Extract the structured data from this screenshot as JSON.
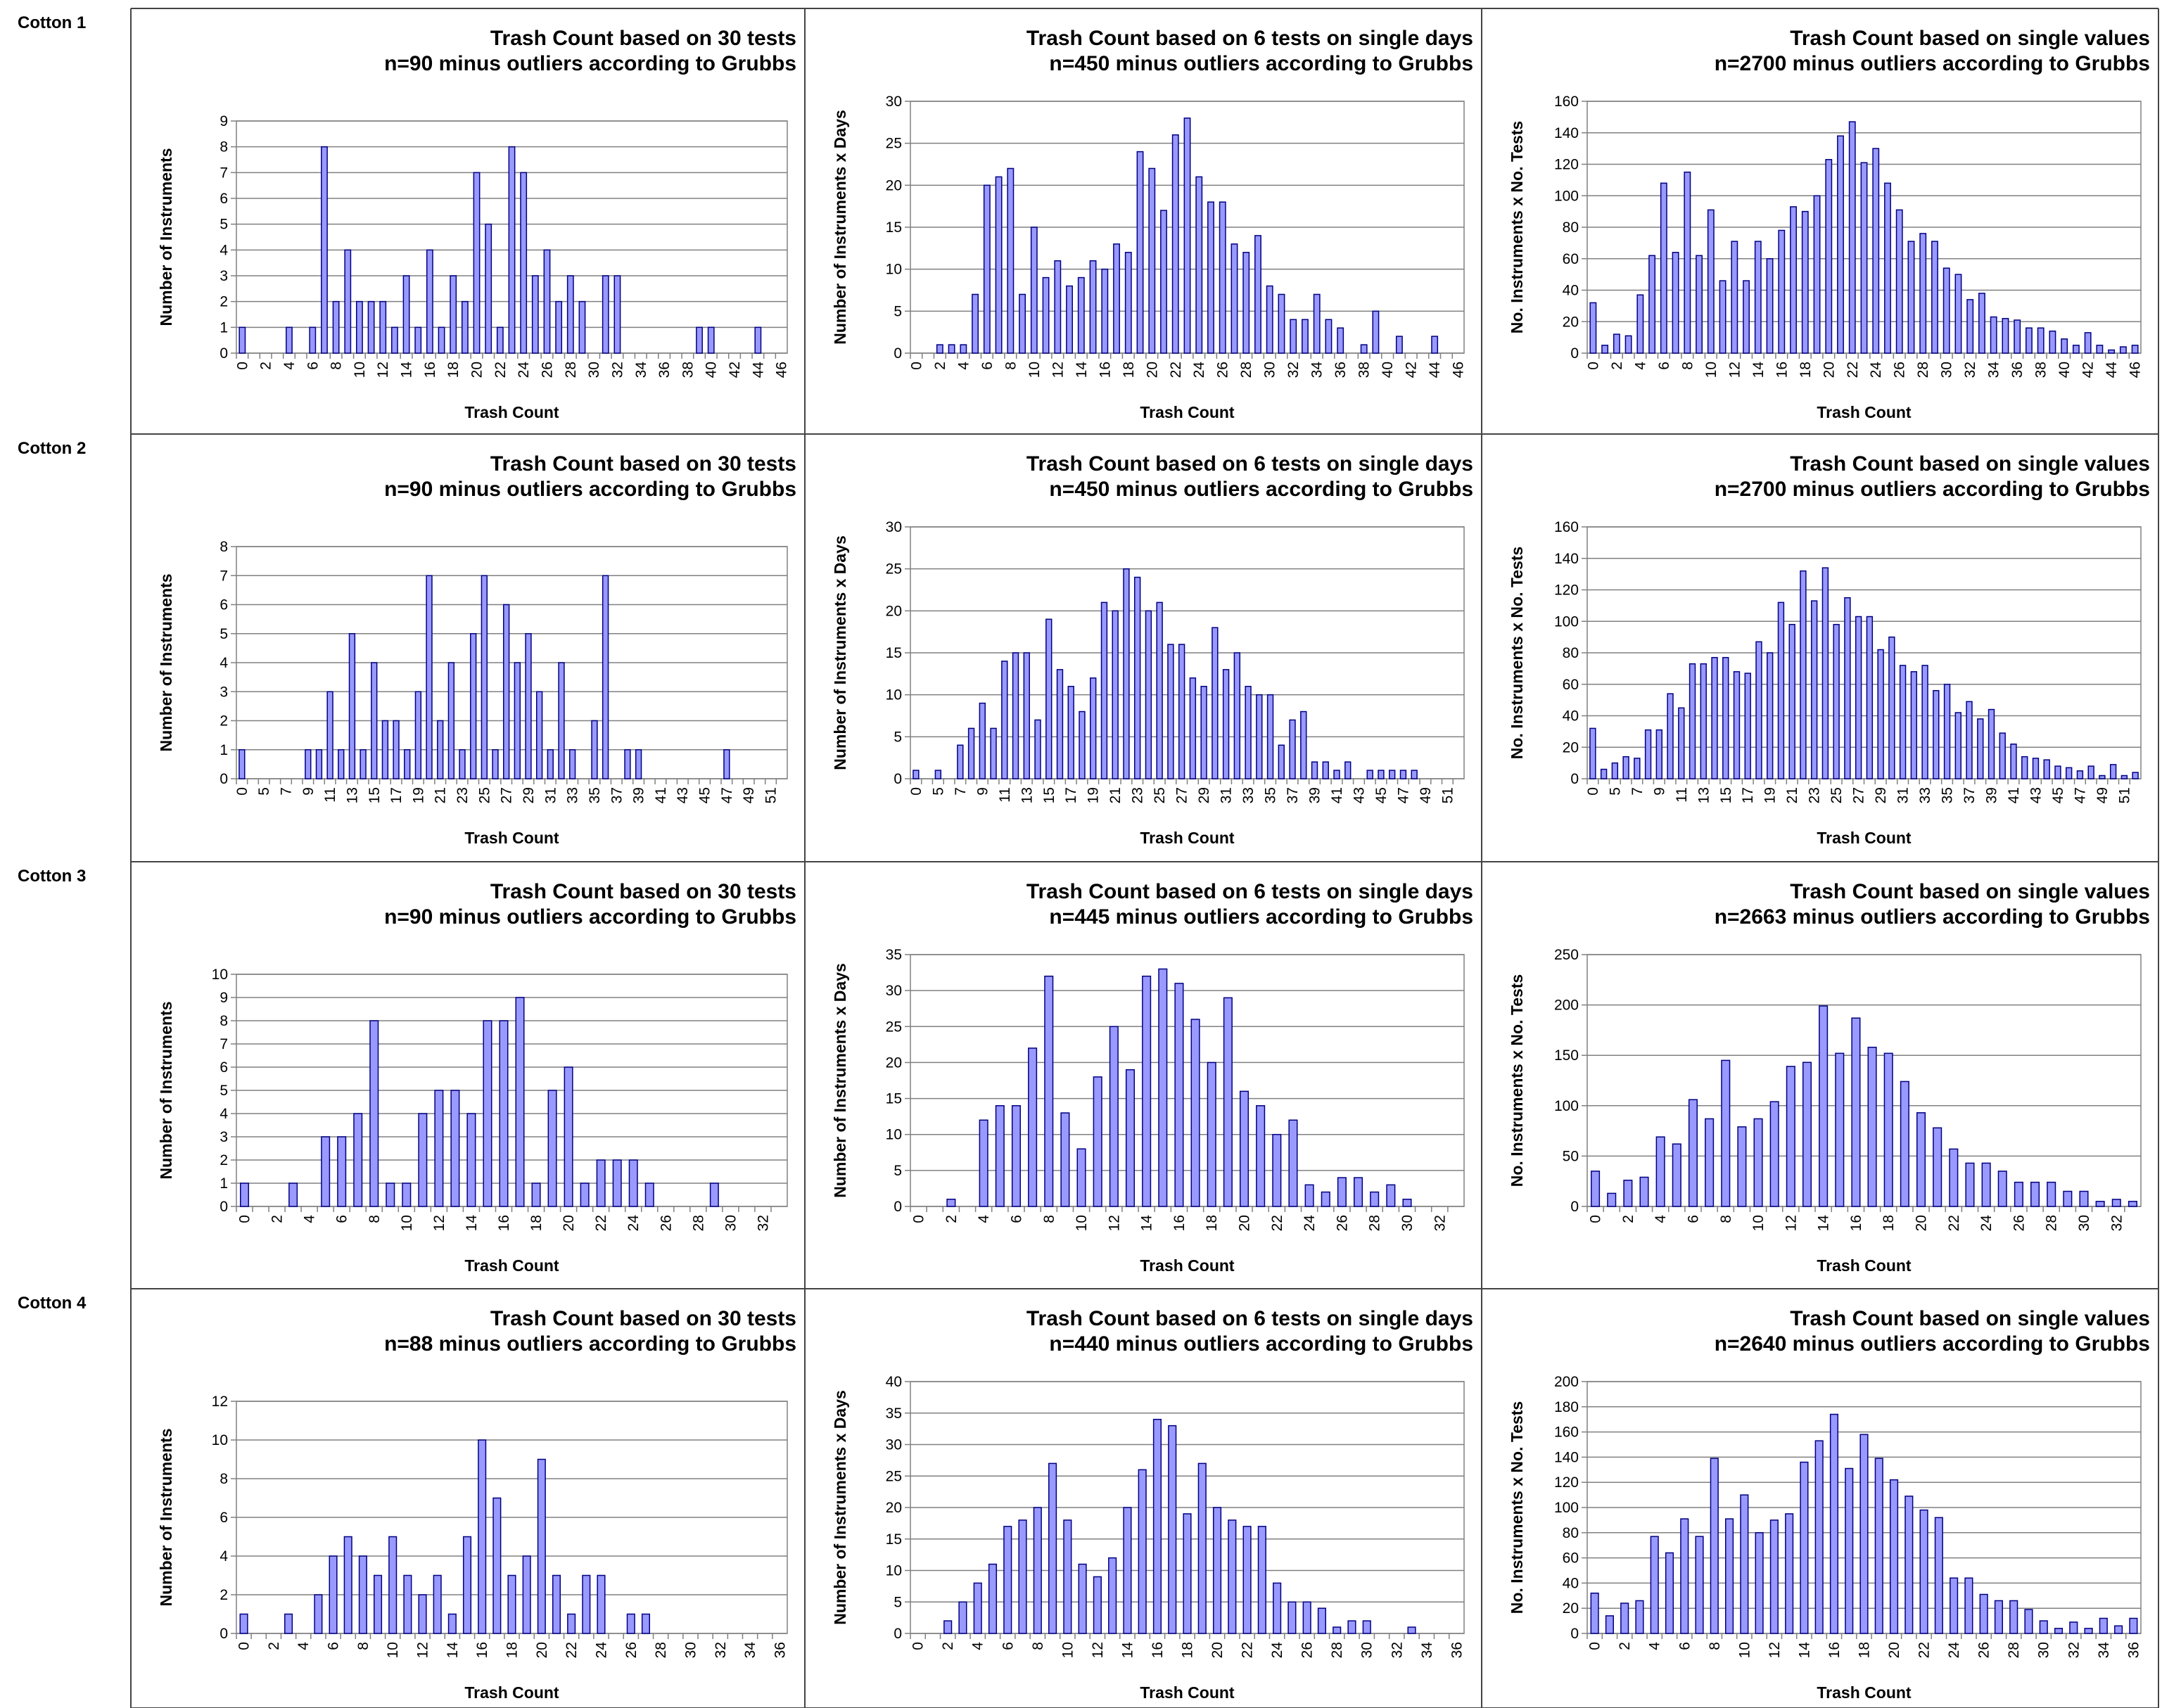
{
  "row_labels": [
    "Cotton 1",
    "Cotton 2",
    "Cotton 3",
    "Cotton 4"
  ],
  "chart_data": [
    {
      "type": "bar",
      "title": "Trash Count based on 30 tests",
      "subtitle": "n=90 minus outliers according to Grubbs",
      "x_label": "Trash Count",
      "y_label": "Number of Instruments",
      "color": "#9999ff",
      "edgecolor": "#000080",
      "grid": true,
      "categories": [
        0,
        null,
        2,
        null,
        4,
        null,
        6,
        null,
        8,
        null,
        10,
        null,
        12,
        null,
        14,
        null,
        16,
        null,
        18,
        null,
        20,
        null,
        22,
        null,
        24,
        null,
        26,
        null,
        28,
        null,
        30,
        null,
        32,
        null,
        34,
        null,
        36,
        null,
        38,
        null,
        40,
        null,
        42,
        null,
        44,
        null,
        46
      ],
      "values": [
        1,
        0,
        0,
        0,
        1,
        0,
        1,
        8,
        2,
        4,
        2,
        2,
        2,
        1,
        3,
        1,
        4,
        1,
        3,
        2,
        7,
        5,
        1,
        8,
        7,
        3,
        4,
        2,
        3,
        2,
        0,
        3,
        3,
        0,
        0,
        0,
        0,
        0,
        0,
        1,
        1,
        0,
        0,
        0,
        1,
        0,
        0
      ],
      "ylim": [
        0,
        9
      ],
      "yticks": [
        0,
        1,
        2,
        3,
        4,
        5,
        6,
        7,
        8,
        9
      ]
    },
    {
      "type": "bar",
      "title": "Trash Count based on 6 tests on single days",
      "subtitle": "n=450 minus outliers according to Grubbs",
      "x_label": "Trash Count",
      "y_label": "Number of Instruments x Days",
      "color": "#9999ff",
      "edgecolor": "#000080",
      "grid": true,
      "categories": [
        0,
        null,
        2,
        null,
        4,
        null,
        6,
        null,
        8,
        null,
        10,
        null,
        12,
        null,
        14,
        null,
        16,
        null,
        18,
        null,
        20,
        null,
        22,
        null,
        24,
        null,
        26,
        null,
        28,
        null,
        30,
        null,
        32,
        null,
        34,
        null,
        36,
        null,
        38,
        null,
        40,
        null,
        42,
        null,
        44,
        null,
        46
      ],
      "values": [
        0,
        0,
        1,
        1,
        1,
        7,
        20,
        21,
        22,
        7,
        15,
        9,
        11,
        8,
        9,
        11,
        10,
        13,
        12,
        24,
        22,
        17,
        26,
        28,
        21,
        18,
        18,
        13,
        12,
        14,
        8,
        7,
        4,
        4,
        7,
        4,
        3,
        0,
        1,
        5,
        0,
        2,
        0,
        0,
        2,
        0,
        0
      ],
      "ylim": [
        0,
        30
      ],
      "yticks": [
        0,
        5,
        10,
        15,
        20,
        25,
        30
      ]
    },
    {
      "type": "bar",
      "title": "Trash Count based on single values",
      "subtitle": "n=2700 minus outliers according to Grubbs",
      "x_label": "Trash Count",
      "y_label": "No. Instruments x No. Tests",
      "color": "#9999ff",
      "edgecolor": "#000080",
      "grid": true,
      "categories": [
        0,
        null,
        2,
        null,
        4,
        null,
        6,
        null,
        8,
        null,
        10,
        null,
        12,
        null,
        14,
        null,
        16,
        null,
        18,
        null,
        20,
        null,
        22,
        null,
        24,
        null,
        26,
        null,
        28,
        null,
        30,
        null,
        32,
        null,
        34,
        null,
        36,
        null,
        38,
        null,
        40,
        null,
        42,
        null,
        44,
        null,
        46
      ],
      "values": [
        32,
        5,
        12,
        11,
        37,
        62,
        108,
        64,
        115,
        62,
        91,
        46,
        71,
        46,
        71,
        60,
        78,
        93,
        90,
        100,
        123,
        138,
        147,
        121,
        130,
        108,
        91,
        71,
        76,
        71,
        54,
        50,
        34,
        38,
        23,
        22,
        21,
        16,
        16,
        14,
        9,
        5,
        13,
        5,
        2,
        4,
        5
      ],
      "ylim": [
        0,
        160
      ],
      "yticks": [
        0,
        20,
        40,
        60,
        80,
        100,
        120,
        140,
        160
      ]
    },
    {
      "type": "bar",
      "title": "Trash Count based on 30 tests",
      "subtitle": "n=90 minus outliers according to Grubbs",
      "x_label": "Trash Count",
      "y_label": "Number of Instruments",
      "color": "#9999ff",
      "edgecolor": "#000080",
      "grid": true,
      "categories": [
        0,
        null,
        5,
        null,
        7,
        null,
        9,
        null,
        11,
        null,
        13,
        null,
        15,
        null,
        17,
        null,
        19,
        null,
        21,
        null,
        23,
        null,
        25,
        null,
        27,
        null,
        29,
        null,
        31,
        null,
        33,
        null,
        35,
        null,
        37,
        null,
        39,
        null,
        41,
        null,
        43,
        null,
        45,
        null,
        47,
        null,
        49,
        null,
        51,
        null
      ],
      "values": [
        1,
        0,
        0,
        0,
        0,
        0,
        1,
        1,
        3,
        1,
        5,
        1,
        4,
        2,
        2,
        1,
        3,
        7,
        2,
        4,
        1,
        5,
        7,
        1,
        6,
        4,
        5,
        3,
        1,
        4,
        1,
        0,
        2,
        7,
        0,
        1,
        1,
        0,
        0,
        0,
        0,
        0,
        0,
        0,
        1,
        0,
        0,
        0,
        0,
        0
      ],
      "ylim": [
        0,
        8
      ],
      "yticks": [
        0,
        1,
        2,
        3,
        4,
        5,
        6,
        7,
        8
      ]
    },
    {
      "type": "bar",
      "title": "Trash Count based on 6 tests on single days",
      "subtitle": "n=450 minus outliers according to Grubbs",
      "x_label": "Trash Count",
      "y_label": "Number of Instruments x Days",
      "color": "#9999ff",
      "edgecolor": "#000080",
      "grid": true,
      "categories": [
        0,
        null,
        5,
        null,
        7,
        null,
        9,
        null,
        11,
        null,
        13,
        null,
        15,
        null,
        17,
        null,
        19,
        null,
        21,
        null,
        23,
        null,
        25,
        null,
        27,
        null,
        29,
        null,
        31,
        null,
        33,
        null,
        35,
        null,
        37,
        null,
        39,
        null,
        41,
        null,
        43,
        null,
        45,
        null,
        47,
        null,
        49,
        null,
        51,
        null
      ],
      "values": [
        1,
        0,
        1,
        0,
        4,
        6,
        9,
        6,
        14,
        15,
        15,
        7,
        19,
        13,
        11,
        8,
        12,
        21,
        20,
        25,
        24,
        20,
        21,
        16,
        16,
        12,
        11,
        18,
        13,
        15,
        11,
        10,
        10,
        4,
        7,
        8,
        2,
        2,
        1,
        2,
        0,
        1,
        1,
        1,
        1,
        1,
        0,
        0,
        0,
        0
      ],
      "ylim": [
        0,
        30
      ],
      "yticks": [
        0,
        5,
        10,
        15,
        20,
        25,
        30
      ]
    },
    {
      "type": "bar",
      "title": "Trash Count based on single values",
      "subtitle": "n=2700 minus outliers according to Grubbs",
      "x_label": "Trash Count",
      "y_label": "No. Instruments x No. Tests",
      "color": "#9999ff",
      "edgecolor": "#000080",
      "grid": true,
      "categories": [
        0,
        null,
        5,
        null,
        7,
        null,
        9,
        null,
        11,
        null,
        13,
        null,
        15,
        null,
        17,
        null,
        19,
        null,
        21,
        null,
        23,
        null,
        25,
        null,
        27,
        null,
        29,
        null,
        31,
        null,
        33,
        null,
        35,
        null,
        37,
        null,
        39,
        null,
        41,
        null,
        43,
        null,
        45,
        null,
        47,
        null,
        49,
        null,
        51,
        null
      ],
      "values": [
        32,
        6,
        10,
        14,
        13,
        31,
        31,
        54,
        45,
        73,
        73,
        77,
        77,
        68,
        67,
        87,
        80,
        112,
        98,
        132,
        113,
        134,
        98,
        115,
        103,
        103,
        82,
        90,
        72,
        68,
        72,
        56,
        60,
        42,
        49,
        38,
        44,
        29,
        22,
        14,
        13,
        12,
        8,
        7,
        5,
        8,
        2,
        9,
        2,
        4
      ],
      "ylim": [
        0,
        160
      ],
      "yticks": [
        0,
        20,
        40,
        60,
        80,
        100,
        120,
        140,
        160
      ]
    },
    {
      "type": "bar",
      "title": "Trash Count based on 30 tests",
      "subtitle": "n=90 minus outliers according to Grubbs",
      "x_label": "Trash Count",
      "y_label": "Number of Instruments",
      "color": "#9999ff",
      "edgecolor": "#000080",
      "grid": true,
      "categories": [
        0,
        null,
        2,
        null,
        4,
        null,
        6,
        null,
        8,
        null,
        10,
        null,
        12,
        null,
        14,
        null,
        16,
        null,
        18,
        null,
        20,
        null,
        22,
        null,
        24,
        null,
        26,
        null,
        28,
        null,
        30,
        null,
        32,
        null
      ],
      "values": [
        1,
        0,
        0,
        1,
        0,
        3,
        3,
        4,
        8,
        1,
        1,
        4,
        5,
        5,
        4,
        8,
        8,
        9,
        1,
        5,
        6,
        1,
        2,
        2,
        2,
        1,
        0,
        0,
        0,
        1,
        0,
        0,
        0,
        0
      ],
      "ylim": [
        0,
        10
      ],
      "yticks": [
        0,
        1,
        2,
        3,
        4,
        5,
        6,
        7,
        8,
        9,
        10
      ]
    },
    {
      "type": "bar",
      "title": "Trash Count based on 6 tests on single days",
      "subtitle": "n=445 minus outliers according to Grubbs",
      "x_label": "Trash Count",
      "y_label": "Number of Instruments x Days",
      "color": "#9999ff",
      "edgecolor": "#000080",
      "grid": true,
      "categories": [
        0,
        null,
        2,
        null,
        4,
        null,
        6,
        null,
        8,
        null,
        10,
        null,
        12,
        null,
        14,
        null,
        16,
        null,
        18,
        null,
        20,
        null,
        22,
        null,
        24,
        null,
        26,
        null,
        28,
        null,
        30,
        null,
        32,
        null
      ],
      "values": [
        0,
        0,
        1,
        0,
        12,
        14,
        14,
        22,
        32,
        13,
        8,
        18,
        25,
        19,
        32,
        33,
        31,
        26,
        20,
        29,
        16,
        14,
        10,
        12,
        3,
        2,
        4,
        4,
        2,
        3,
        1,
        0,
        0,
        0
      ],
      "ylim": [
        0,
        35
      ],
      "yticks": [
        0,
        5,
        10,
        15,
        20,
        25,
        30,
        35
      ]
    },
    {
      "type": "bar",
      "title": "Trash Count based on single values",
      "subtitle": "n=2663 minus outliers according to Grubbs",
      "x_label": "Trash Count",
      "y_label": "No. Instruments x No. Tests",
      "color": "#9999ff",
      "edgecolor": "#000080",
      "grid": true,
      "categories": [
        0,
        null,
        2,
        null,
        4,
        null,
        6,
        null,
        8,
        null,
        10,
        null,
        12,
        null,
        14,
        null,
        16,
        null,
        18,
        null,
        20,
        null,
        22,
        null,
        24,
        null,
        26,
        null,
        28,
        null,
        30,
        null,
        32,
        null
      ],
      "values": [
        35,
        13,
        26,
        29,
        69,
        62,
        106,
        87,
        145,
        79,
        87,
        104,
        139,
        143,
        199,
        152,
        187,
        158,
        152,
        124,
        93,
        78,
        57,
        43,
        43,
        35,
        24,
        24,
        24,
        15,
        15,
        5,
        7,
        5
      ],
      "ylim": [
        0,
        250
      ],
      "yticks": [
        0,
        50,
        100,
        150,
        200,
        250
      ]
    },
    {
      "type": "bar",
      "title": "Trash Count based on 30 tests",
      "subtitle": "n=88 minus outliers according to Grubbs",
      "x_label": "Trash Count",
      "y_label": "Number of Instruments",
      "color": "#9999ff",
      "edgecolor": "#000080",
      "grid": true,
      "categories": [
        0,
        null,
        2,
        null,
        4,
        null,
        6,
        null,
        8,
        null,
        10,
        null,
        12,
        null,
        14,
        null,
        16,
        null,
        18,
        null,
        20,
        null,
        22,
        null,
        24,
        null,
        26,
        null,
        28,
        null,
        30,
        null,
        32,
        null,
        34,
        null,
        36
      ],
      "values": [
        1,
        0,
        0,
        1,
        0,
        2,
        4,
        5,
        4,
        3,
        5,
        3,
        2,
        3,
        1,
        5,
        10,
        7,
        3,
        4,
        9,
        3,
        1,
        3,
        3,
        0,
        1,
        1,
        0,
        0,
        0,
        0,
        0,
        0,
        0,
        0,
        0
      ],
      "ylim": [
        0,
        12
      ],
      "yticks": [
        0,
        2,
        4,
        6,
        8,
        10,
        12
      ]
    },
    {
      "type": "bar",
      "title": "Trash Count based on 6 tests on single days",
      "subtitle": "n=440 minus outliers according to Grubbs",
      "x_label": "Trash Count",
      "y_label": "Number of Instruments x Days",
      "color": "#9999ff",
      "edgecolor": "#000080",
      "grid": true,
      "categories": [
        0,
        null,
        2,
        null,
        4,
        null,
        6,
        null,
        8,
        null,
        10,
        null,
        12,
        null,
        14,
        null,
        16,
        null,
        18,
        null,
        20,
        null,
        22,
        null,
        24,
        null,
        26,
        null,
        28,
        null,
        30,
        null,
        32,
        null,
        34,
        null,
        36
      ],
      "values": [
        0,
        0,
        2,
        5,
        8,
        11,
        17,
        18,
        20,
        27,
        18,
        11,
        9,
        12,
        20,
        26,
        34,
        33,
        19,
        27,
        20,
        18,
        17,
        17,
        8,
        5,
        5,
        4,
        1,
        2,
        2,
        0,
        0,
        1,
        0,
        0,
        0
      ],
      "ylim": [
        0,
        40
      ],
      "yticks": [
        0,
        5,
        10,
        15,
        20,
        25,
        30,
        35,
        40
      ]
    },
    {
      "type": "bar",
      "title": "Trash Count based on single values",
      "subtitle": "n=2640 minus outliers according to Grubbs",
      "x_label": "Trash Count",
      "y_label": "No. Instruments x No. Tests",
      "color": "#9999ff",
      "edgecolor": "#000080",
      "grid": true,
      "categories": [
        0,
        null,
        2,
        null,
        4,
        null,
        6,
        null,
        8,
        null,
        10,
        null,
        12,
        null,
        14,
        null,
        16,
        null,
        18,
        null,
        20,
        null,
        22,
        null,
        24,
        null,
        26,
        null,
        28,
        null,
        30,
        null,
        32,
        null,
        34,
        null,
        36
      ],
      "values": [
        32,
        14,
        24,
        26,
        77,
        64,
        91,
        77,
        139,
        91,
        110,
        80,
        90,
        95,
        136,
        153,
        174,
        131,
        158,
        139,
        122,
        109,
        98,
        92,
        44,
        44,
        31,
        26,
        26,
        19,
        10,
        4,
        9,
        4,
        12,
        6,
        12
      ],
      "ylim": [
        0,
        200
      ],
      "yticks": [
        0,
        20,
        40,
        60,
        80,
        100,
        120,
        140,
        160,
        180,
        200
      ]
    }
  ]
}
